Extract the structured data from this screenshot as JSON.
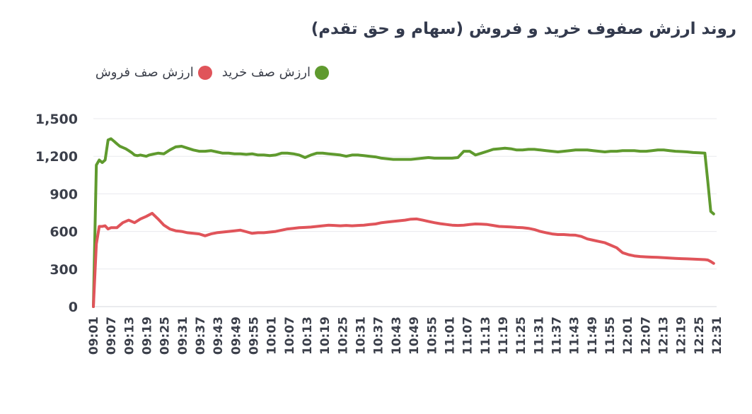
{
  "title": "روند ارزش صفوف خرید و فروش (سهام و حق تقدم)",
  "legend": [
    {
      "label": "ارزش صف خرید",
      "color": "#5f9a2e"
    },
    {
      "label": "ارزش صف فروش",
      "color": "#e0545a"
    }
  ],
  "chart_data": {
    "type": "line",
    "ylim": [
      0,
      1500
    ],
    "yticks": [
      "1,500",
      "1,200",
      "900",
      "600",
      "300",
      "0"
    ],
    "grid": true,
    "legend_position": "top-left",
    "xticks": [
      "09:01",
      "09:07",
      "09:13",
      "09:19",
      "09:25",
      "09:31",
      "09:37",
      "09:43",
      "09:49",
      "09:55",
      "10:01",
      "10:07",
      "10:13",
      "10:19",
      "10:25",
      "10:31",
      "10:37",
      "10:43",
      "10:49",
      "10:55",
      "11:01",
      "11:07",
      "11:13",
      "11:19",
      "11:25",
      "11:31",
      "11:37",
      "11:43",
      "11:49",
      "11:55",
      "12:01",
      "12:07",
      "12:13",
      "12:19",
      "12:25",
      "12:31"
    ],
    "xrange": [
      0,
      212
    ],
    "series": [
      {
        "name": "ارزش صف خرید",
        "color": "#5f9a2e",
        "x": [
          0,
          1,
          2,
          3,
          4,
          5,
          6,
          7,
          8,
          9,
          10,
          11,
          12,
          13,
          14,
          15,
          16,
          17,
          18,
          19,
          20,
          22,
          24,
          26,
          28,
          30,
          32,
          34,
          36,
          38,
          40,
          42,
          44,
          46,
          48,
          50,
          52,
          54,
          56,
          58,
          60,
          62,
          64,
          66,
          68,
          70,
          72,
          74,
          76,
          78,
          80,
          82,
          84,
          86,
          88,
          90,
          92,
          94,
          96,
          98,
          100,
          102,
          104,
          106,
          108,
          110,
          112,
          114,
          116,
          118,
          120,
          122,
          124,
          126,
          128,
          130,
          132,
          134,
          136,
          138,
          140,
          142,
          144,
          146,
          148,
          150,
          152,
          154,
          156,
          158,
          160,
          162,
          164,
          166,
          168,
          170,
          172,
          174,
          176,
          178,
          180,
          182,
          184,
          186,
          188,
          190,
          192,
          194,
          196,
          198,
          200,
          202,
          204,
          206,
          208,
          209,
          210,
          211
        ],
        "values": [
          0,
          1130,
          1170,
          1150,
          1170,
          1330,
          1340,
          1320,
          1300,
          1280,
          1270,
          1260,
          1245,
          1230,
          1210,
          1205,
          1210,
          1205,
          1200,
          1210,
          1215,
          1225,
          1220,
          1250,
          1275,
          1280,
          1265,
          1250,
          1240,
          1240,
          1245,
          1235,
          1225,
          1225,
          1220,
          1220,
          1215,
          1220,
          1210,
          1210,
          1205,
          1210,
          1225,
          1225,
          1220,
          1210,
          1190,
          1210,
          1225,
          1225,
          1220,
          1215,
          1210,
          1200,
          1210,
          1210,
          1205,
          1200,
          1195,
          1185,
          1180,
          1175,
          1175,
          1175,
          1175,
          1180,
          1185,
          1190,
          1185,
          1185,
          1185,
          1185,
          1190,
          1240,
          1240,
          1210,
          1225,
          1240,
          1255,
          1260,
          1265,
          1260,
          1250,
          1250,
          1255,
          1255,
          1250,
          1245,
          1240,
          1235,
          1240,
          1245,
          1250,
          1250,
          1250,
          1245,
          1240,
          1235,
          1240,
          1240,
          1245,
          1245,
          1245,
          1240,
          1240,
          1245,
          1250,
          1250,
          1245,
          1240,
          1238,
          1235,
          1230,
          1228,
          1225,
          1000,
          760,
          740
        ]
      },
      {
        "name": "ارزش صف فروش",
        "color": "#e0545a",
        "x": [
          0,
          1,
          2,
          3,
          4,
          5,
          6,
          7,
          8,
          9,
          10,
          12,
          14,
          16,
          18,
          20,
          22,
          24,
          26,
          28,
          30,
          32,
          34,
          36,
          38,
          40,
          42,
          44,
          46,
          48,
          50,
          52,
          54,
          56,
          58,
          60,
          62,
          64,
          66,
          68,
          70,
          72,
          74,
          76,
          78,
          80,
          82,
          84,
          86,
          88,
          90,
          92,
          94,
          96,
          98,
          100,
          102,
          104,
          106,
          108,
          110,
          112,
          114,
          116,
          118,
          120,
          122,
          124,
          126,
          128,
          130,
          132,
          134,
          136,
          138,
          140,
          142,
          144,
          146,
          148,
          150,
          152,
          154,
          156,
          158,
          160,
          162,
          164,
          166,
          168,
          170,
          172,
          174,
          176,
          178,
          180,
          182,
          184,
          186,
          188,
          190,
          192,
          194,
          196,
          198,
          200,
          202,
          204,
          206,
          208,
          209,
          210,
          211
        ],
        "values": [
          0,
          500,
          640,
          640,
          645,
          620,
          630,
          630,
          630,
          650,
          670,
          690,
          670,
          700,
          720,
          745,
          700,
          650,
          620,
          605,
          600,
          590,
          585,
          580,
          565,
          580,
          590,
          595,
          600,
          605,
          610,
          598,
          585,
          590,
          590,
          595,
          600,
          610,
          620,
          625,
          630,
          632,
          635,
          640,
          645,
          650,
          648,
          645,
          648,
          645,
          648,
          650,
          655,
          660,
          670,
          675,
          680,
          685,
          690,
          698,
          700,
          690,
          680,
          670,
          662,
          656,
          650,
          648,
          650,
          655,
          660,
          658,
          655,
          648,
          640,
          638,
          636,
          632,
          630,
          625,
          615,
          600,
          590,
          580,
          575,
          575,
          572,
          570,
          560,
          540,
          530,
          520,
          510,
          490,
          470,
          430,
          415,
          405,
          400,
          397,
          395,
          393,
          390,
          388,
          385,
          383,
          381,
          379,
          377,
          375,
          372,
          360,
          345
        ]
      }
    ]
  }
}
